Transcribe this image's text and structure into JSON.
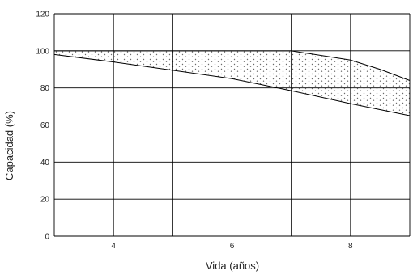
{
  "chart_data": {
    "type": "area",
    "xlabel": "Vida (años)",
    "ylabel": "Capacidad (%)",
    "xlim": [
      3,
      9
    ],
    "ylim": [
      0,
      120
    ],
    "x_ticks": [
      4,
      6,
      8
    ],
    "x_grid": [
      3,
      4,
      5,
      6,
      7,
      8,
      9
    ],
    "y_ticks": [
      0,
      20,
      40,
      60,
      80,
      100,
      120
    ],
    "grid": true,
    "series": [
      {
        "values_x": [
          3,
          7,
          8,
          8.5,
          9
        ],
        "values_y": [
          100,
          100,
          95,
          90,
          84
        ]
      },
      {
        "values_x": [
          3,
          4,
          5,
          6,
          7,
          8,
          9
        ],
        "values_y": [
          98,
          94,
          89.5,
          85,
          78.5,
          71.5,
          65
        ]
      }
    ],
    "fill_between": true,
    "fill_pattern": "stipple"
  }
}
